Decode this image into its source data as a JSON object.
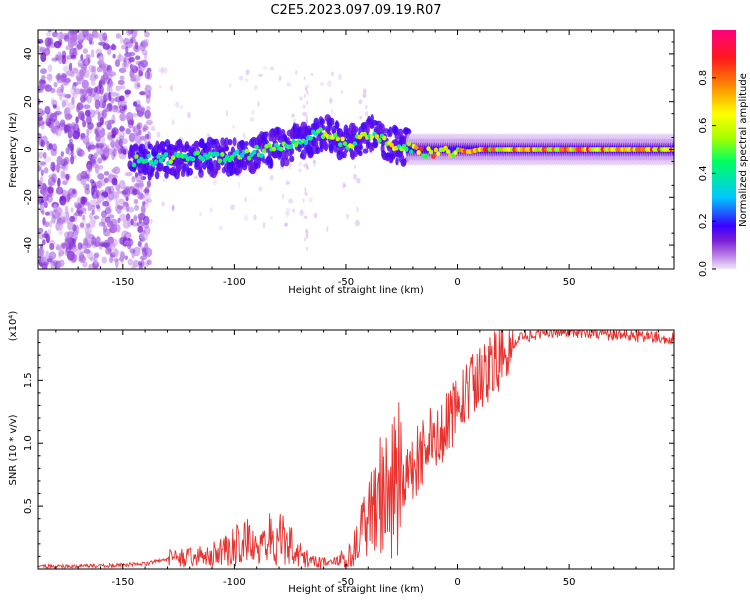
{
  "title": "C2E5.2023.097.09.19.R07",
  "colors": {
    "snr_line": "#e8322f",
    "axis": "#000000"
  },
  "chart_data": [
    {
      "type": "heatmap",
      "xlabel": "Height of straight line (km)",
      "ylabel": "Frequency (Hz)",
      "xlim": [
        -188,
        97
      ],
      "ylim": [
        -50,
        50
      ],
      "xticks": [
        -150,
        -100,
        -50,
        0,
        50
      ],
      "yticks": [
        -40,
        -20,
        0,
        20,
        40
      ],
      "colorbar": {
        "label": "Normalized spectral amplitude",
        "range": [
          0,
          1
        ],
        "ticks": [
          "0.0",
          "0.2",
          "0.4",
          "0.6",
          "0.8"
        ],
        "tick_values": [
          0.0,
          0.2,
          0.4,
          0.6,
          0.8
        ],
        "colormap": [
          "#f1e6fa",
          "#b77ae6",
          "#7a1ed6",
          "#3a00ff",
          "#00c8ff",
          "#00ff60",
          "#a8ff00",
          "#ffff00",
          "#ff9900",
          "#ff1a1a",
          "#ff0080"
        ],
        "colormap_stops": [
          0.0,
          0.06,
          0.12,
          0.18,
          0.3,
          0.45,
          0.55,
          0.65,
          0.75,
          0.88,
          1.0
        ]
      },
      "ridge": {
        "x": [
          -145,
          -130,
          -115,
          -100,
          -90,
          -80,
          -72,
          -66,
          -60,
          -56,
          -52,
          -48,
          -44,
          -40,
          -36,
          -32,
          -28,
          -24,
          -20,
          -15,
          -10,
          -5,
          0,
          5,
          10,
          20,
          40,
          60,
          97
        ],
        "freq": [
          -5,
          -4,
          -3,
          -3,
          -1,
          1,
          3,
          5,
          7,
          6,
          3,
          2,
          5,
          7,
          5,
          3,
          2,
          1,
          0,
          -1,
          -2,
          -1,
          0,
          -1,
          0,
          0,
          0,
          0,
          0
        ]
      }
    },
    {
      "type": "line",
      "xlabel": "Height of straight line (km)",
      "ylabel": "SNR (10 * v/v)",
      "y_multiplier": "(x10⁴)",
      "xlim": [
        -188,
        97
      ],
      "ylim": [
        0,
        19000
      ],
      "xticks": [
        -150,
        -100,
        -50,
        0,
        50
      ],
      "yticks": [
        5000,
        10000,
        15000
      ],
      "ytick_labels": [
        "0.5",
        "1.0",
        "1.5"
      ],
      "series": [
        {
          "name": "SNR",
          "x": [
            -188,
            -160,
            -140,
            -130,
            -125,
            -115,
            -108,
            -100,
            -92,
            -85,
            -80,
            -75,
            -70,
            -62,
            -55,
            -50,
            -46,
            -42,
            -38,
            -35,
            -32,
            -28,
            -25,
            -20,
            -15,
            -10,
            -5,
            0,
            5,
            10,
            15,
            20,
            25,
            30,
            35,
            40,
            45,
            50,
            60,
            70,
            80,
            90,
            97
          ],
          "y": [
            200,
            250,
            400,
            800,
            900,
            1000,
            1300,
            1800,
            2200,
            2600,
            2400,
            2000,
            1100,
            500,
            600,
            900,
            2000,
            3000,
            4500,
            5500,
            6500,
            7000,
            7500,
            8000,
            9500,
            10500,
            11500,
            12500,
            14000,
            15000,
            16000,
            17000,
            18000,
            18500,
            18700,
            18900,
            18900,
            18900,
            18800,
            18600,
            18500,
            18400,
            18300
          ]
        }
      ]
    }
  ]
}
